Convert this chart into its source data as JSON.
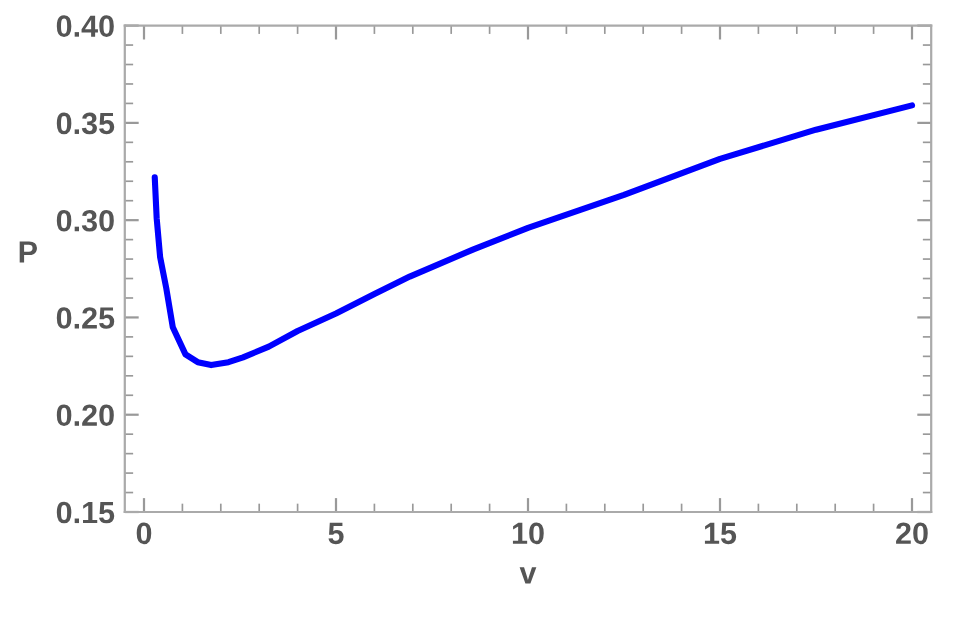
{
  "chart_data": {
    "type": "line",
    "xlabel": "v",
    "ylabel": "P",
    "x": [
      0.28,
      0.33,
      0.42,
      0.58,
      0.75,
      1.08,
      1.4,
      1.75,
      2.2,
      2.58,
      3.25,
      4,
      5,
      6,
      6.92,
      8.58,
      10,
      12.5,
      15,
      17.5,
      20
    ],
    "series": [
      {
        "color": "#0000ff",
        "values": [
          0.322,
          0.301,
          0.281,
          0.265,
          0.245,
          0.231,
          0.227,
          0.2255,
          0.227,
          0.2295,
          0.235,
          0.243,
          0.252,
          0.262,
          0.271,
          0.285,
          0.296,
          0.313,
          0.3315,
          0.3465,
          0.359
        ]
      }
    ],
    "xlim": [
      -0.5,
      20.5
    ],
    "xticks": [
      0,
      5,
      10,
      15,
      20
    ],
    "ylim": [
      0.15,
      0.4
    ],
    "yticks": [
      {
        "value": 0.15,
        "label": "0.15"
      },
      {
        "value": 0.2,
        "label": "0.20"
      },
      {
        "value": 0.25,
        "label": "0.25"
      },
      {
        "value": 0.3,
        "label": "0.30"
      },
      {
        "value": 0.35,
        "label": "0.35"
      },
      {
        "value": 0.4,
        "label": "0.40"
      }
    ],
    "grid": false,
    "legend": false,
    "marker": "none",
    "line_style": "solid"
  }
}
